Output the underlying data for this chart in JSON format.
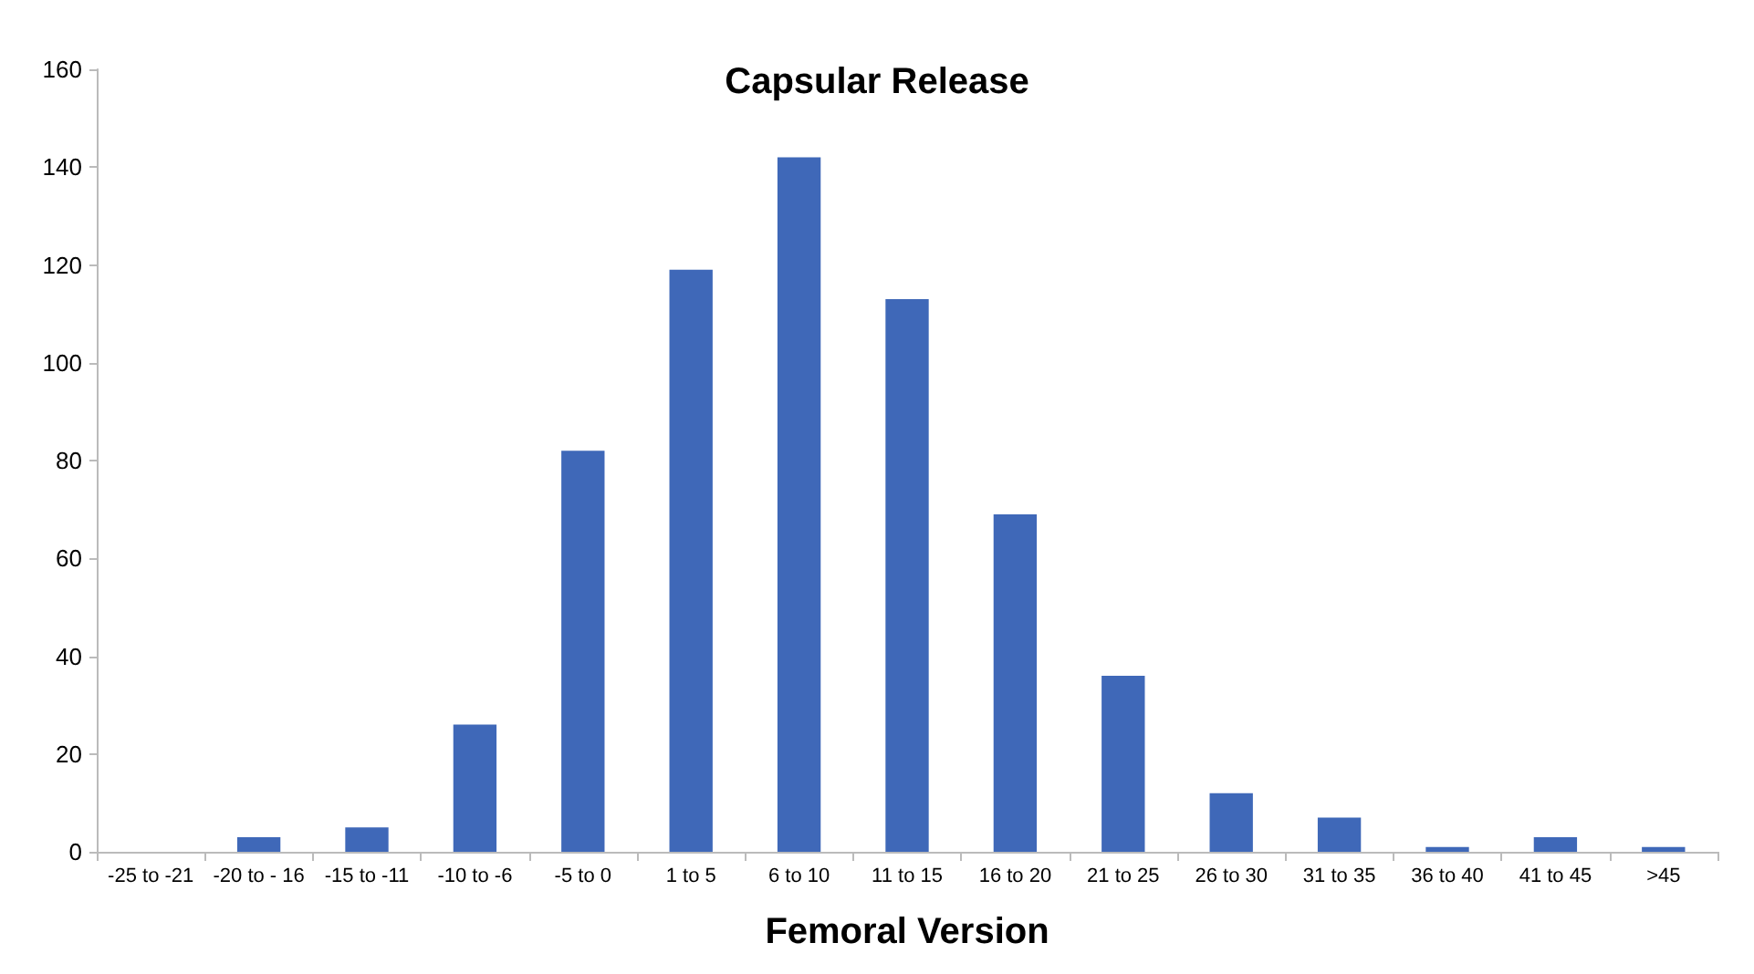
{
  "chart_data": {
    "type": "bar",
    "title": "Capsular Release",
    "xlabel": "Femoral Version",
    "categories": [
      "-25 to -21",
      "-20 to - 16",
      "-15 to -11",
      "-10 to -6",
      "-5 to 0",
      "1 to 5",
      "6 to 10",
      "11 to 15",
      "16 to 20",
      "21 to 25",
      "26 to 30",
      "31 to 35",
      "36 to 40",
      "41 to 45",
      ">45"
    ],
    "values": [
      0,
      3,
      5,
      26,
      82,
      119,
      142,
      113,
      69,
      36,
      12,
      7,
      1,
      3,
      1
    ],
    "color": "#3f68b8",
    "ylim": [
      0,
      160
    ],
    "yticks": [
      0,
      20,
      40,
      60,
      80,
      100,
      120,
      140,
      160
    ],
    "grid": false
  }
}
